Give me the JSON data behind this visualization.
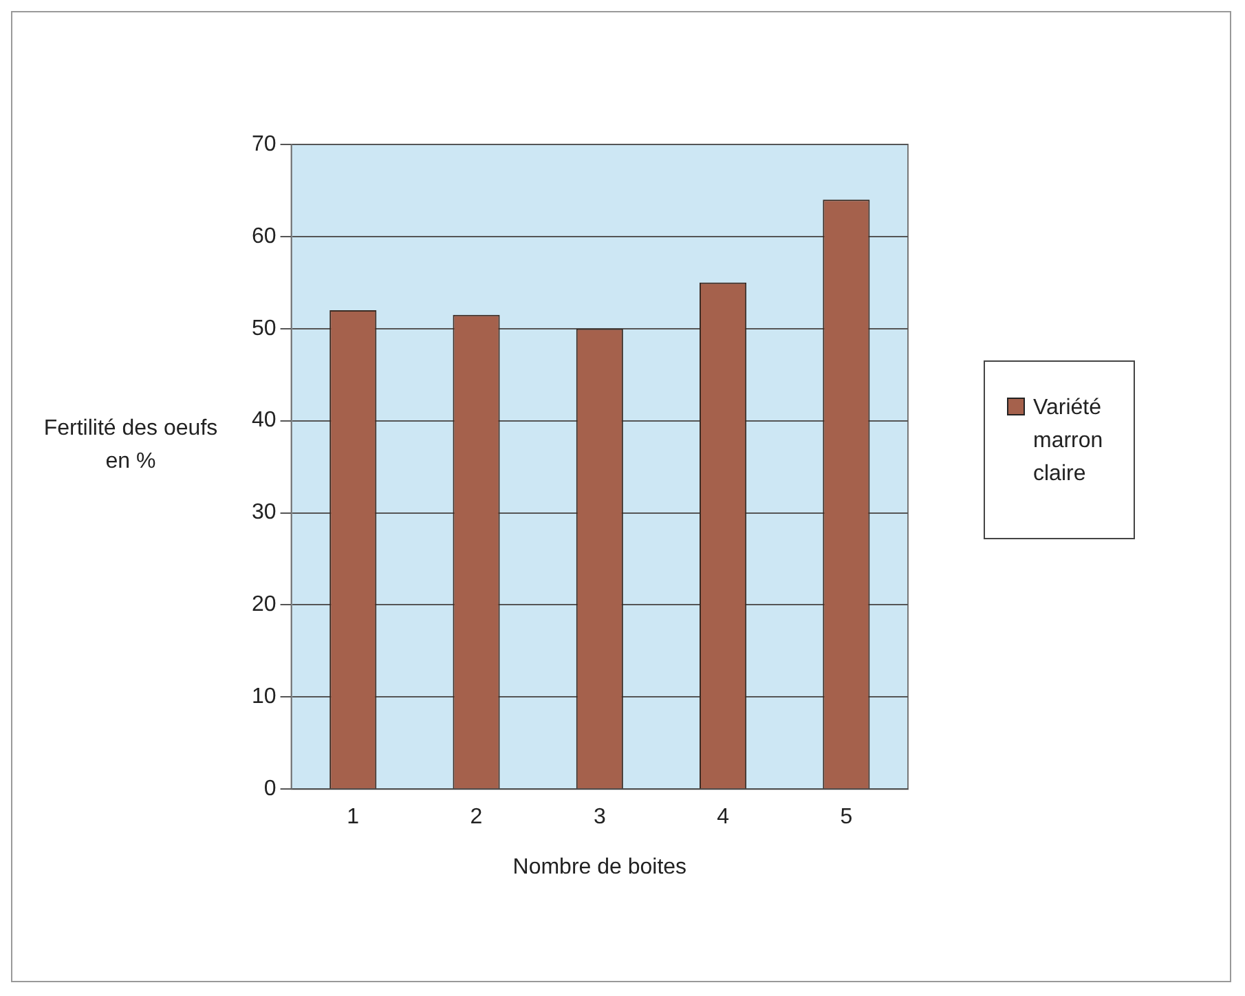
{
  "chart_data": {
    "type": "bar",
    "categories": [
      "1",
      "2",
      "3",
      "4",
      "5"
    ],
    "series": [
      {
        "name": "Variété marron claire",
        "color": "#a5614c",
        "values": [
          52,
          51.5,
          50,
          55,
          64
        ]
      }
    ],
    "xlabel": "Nombre de boites",
    "ylabel": "Fertilité des oeufs en %",
    "ylim": [
      0,
      70
    ],
    "yticks": [
      0,
      10,
      20,
      30,
      40,
      50,
      60,
      70
    ],
    "grid": "y",
    "legend": "right"
  }
}
